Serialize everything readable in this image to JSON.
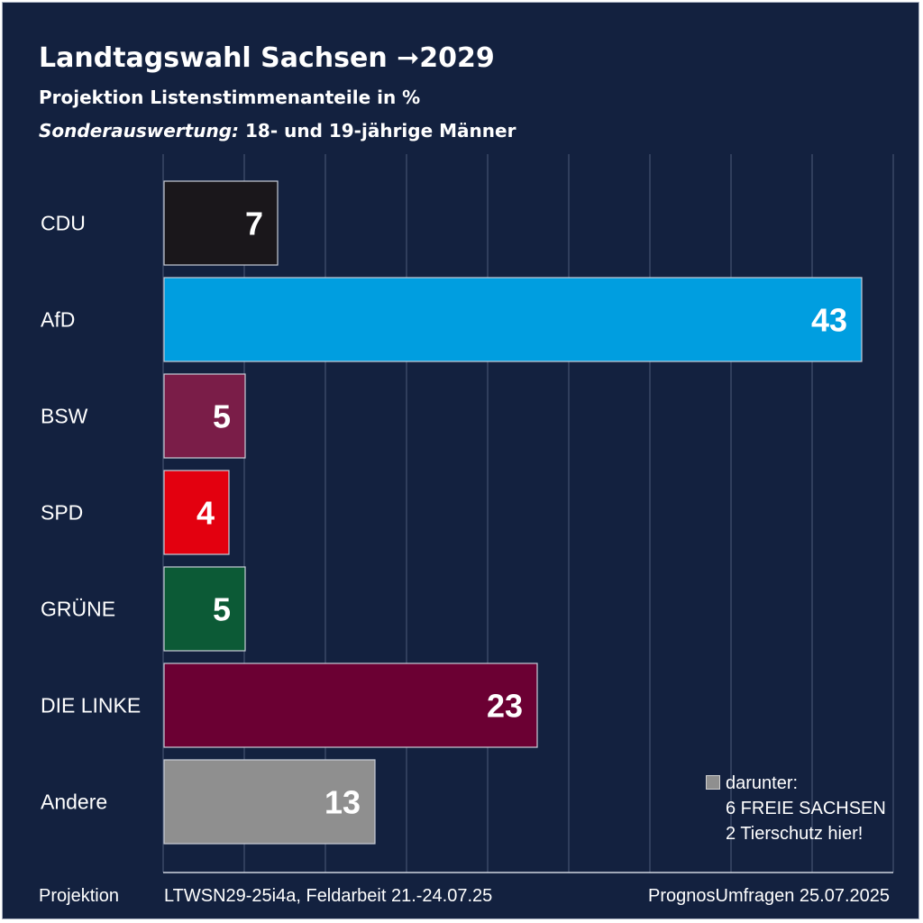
{
  "header": {
    "title": "Landtagswahl Sachsen ➞2029",
    "subtitle": "Projektion Listenstimmenanteile in %",
    "subtitle2_italic": "Sonderauswertung:",
    "subtitle2_rest": " 18- und 19-jährige Männer"
  },
  "chart_data": {
    "type": "bar",
    "orientation": "horizontal",
    "categories": [
      "CDU",
      "AfD",
      "BSW",
      "SPD",
      "GRÜNE",
      "DIE LINKE",
      "Andere"
    ],
    "values": [
      7,
      43,
      5,
      4,
      5,
      23,
      13
    ],
    "colors": [
      "#1a171b",
      "#009ee0",
      "#7a1d48",
      "#e3000f",
      "#0c5a36",
      "#6b0033",
      "#8f8f8f"
    ],
    "xlim": [
      0,
      45
    ],
    "grid": true
  },
  "note": {
    "line1": "darunter:",
    "line2": "6 FREIE SACHSEN",
    "line3": "2 Tierschutz hier!"
  },
  "footer": {
    "left": "Projektion",
    "middle": "LTWSN29-25i4a, Feldarbeit 21.-24.07.25",
    "right": "PrognosUmfragen 25.07.2025"
  }
}
